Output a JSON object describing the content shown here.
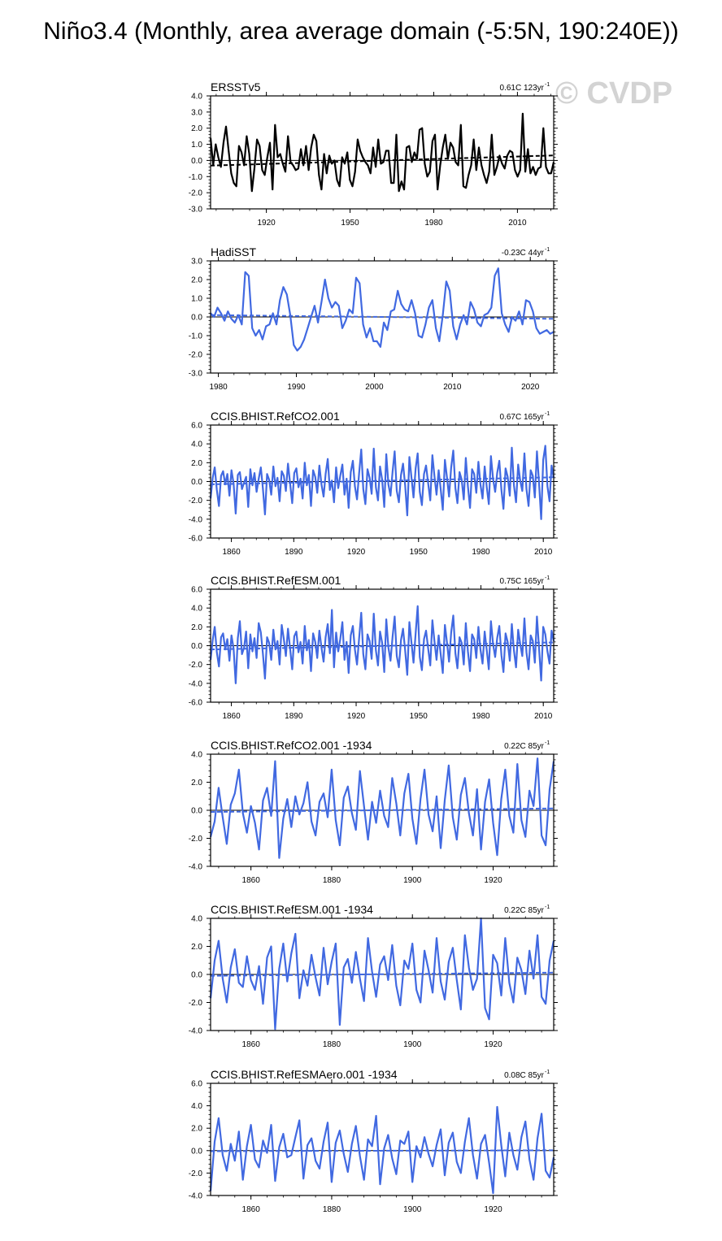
{
  "figure": {
    "title": "Niño3.4 (Monthly, area average domain (-5:5N, 190:240E))",
    "watermark": "© CVDP"
  },
  "colors": {
    "observed": "#000000",
    "model": "#4169e1"
  },
  "chart_data": [
    {
      "type": "line",
      "title": "ERSSTv5",
      "trend_label": "0.61C 123yr",
      "trend_label_sup": "-1",
      "series": [
        {
          "color": "#000000",
          "start": 1900,
          "end": 2023,
          "values": [
            1.4,
            -0.3,
            1.0,
            0.2,
            -0.4,
            1.1,
            2.1,
            0.6,
            -0.8,
            -1.4,
            -1.6,
            0.9,
            0.5,
            -0.3,
            1.5,
            0.4,
            -1.9,
            -0.5,
            1.3,
            0.9,
            -0.6,
            -0.9,
            0.2,
            1.1,
            -1.8,
            2.2,
            0.2,
            0.4,
            -0.2,
            -0.7,
            1.5,
            -0.1,
            -0.3,
            -0.6,
            -0.5,
            0.7,
            -0.3,
            0.9,
            -0.6,
            0.8,
            1.6,
            1.2,
            -0.9,
            -1.8,
            0.4,
            -0.8,
            0.3,
            -0.2,
            0.0,
            -1.2,
            -1.6,
            0.2,
            -0.2,
            0.5,
            -1.2,
            -1.6,
            -0.7,
            1.3,
            0.6,
            0.2,
            -0.1,
            -0.3,
            -0.8,
            0.8,
            -0.4,
            1.3,
            -0.2,
            -0.1,
            0.6,
            0.6,
            -1.4,
            -1.4,
            1.6,
            -1.9,
            -1.3,
            -1.8,
            0.8,
            0.9,
            -0.1,
            0.5,
            0.1,
            1.9,
            2.0,
            -0.2,
            -1.0,
            -0.7,
            1.2,
            1.6,
            -1.8,
            -0.3,
            0.8,
            1.6,
            0.1,
            1.1,
            0.8,
            -0.1,
            -0.3,
            2.2,
            -1.6,
            -1.7,
            -0.9,
            -0.3,
            1.3,
            -0.6,
            0.8,
            -0.3,
            -0.9,
            -1.4,
            -0.7,
            1.6,
            -0.9,
            -0.4,
            0.3,
            -0.2,
            -0.5,
            0.3,
            0.6,
            0.5,
            -0.6,
            -1.0,
            -0.6,
            2.9,
            -0.7,
            0.7,
            -0.8,
            -0.4,
            -0.9,
            -0.5,
            -0.4,
            2.0,
            -0.4,
            -0.8,
            -0.8,
            -0.1
          ]
        }
      ],
      "trend": [
        -0.32,
        0.31
      ],
      "ylim": [
        -3,
        4
      ],
      "ylabels": [
        "4.0",
        "3.0",
        "2.0",
        "1.0",
        "0.0",
        "-1.0",
        "-2.0",
        "-3.0"
      ],
      "xlim": [
        1900,
        2023
      ],
      "xticks": [
        1920,
        1950,
        1980,
        2010
      ]
    },
    {
      "type": "line",
      "title": "HadiSST",
      "trend_label": "-0.23C 44yr",
      "trend_label_sup": "-1",
      "series": [
        {
          "color": "#4169e1",
          "start": 1979,
          "end": 2023,
          "values": [
            0.2,
            0.0,
            0.5,
            0.2,
            -0.2,
            0.3,
            -0.1,
            -0.3,
            0.1,
            -0.4,
            2.4,
            2.2,
            -0.6,
            -1.0,
            -0.7,
            -1.2,
            -0.5,
            -0.4,
            0.2,
            -0.4,
            0.9,
            1.6,
            1.2,
            0.1,
            -1.5,
            -1.8,
            -1.6,
            -1.2,
            -0.6,
            0.0,
            0.6,
            -0.3,
            0.8,
            2.0,
            1.0,
            0.5,
            0.8,
            0.6,
            -0.6,
            -0.2,
            0.4,
            0.2,
            2.1,
            1.8,
            -0.4,
            -1.1,
            -0.6,
            -1.3,
            -1.3,
            -1.6,
            -0.3,
            -0.7,
            0.3,
            0.4,
            1.4,
            0.7,
            0.4,
            0.3,
            0.9,
            0.2,
            -1.0,
            -1.1,
            -0.4,
            0.5,
            0.9,
            -0.6,
            -1.3,
            0.1,
            1.9,
            1.4,
            -0.5,
            -1.2,
            -0.4,
            0.1,
            -0.4,
            0.8,
            0.4,
            -0.3,
            -0.5,
            0.1,
            0.2,
            0.5,
            2.2,
            2.6,
            0.2,
            -0.4,
            -0.8,
            0.0,
            -0.2,
            0.3,
            -0.4,
            0.9,
            0.8,
            0.3,
            -0.6,
            -0.9,
            -0.8,
            -0.7,
            -0.9,
            -0.8
          ]
        }
      ],
      "trend": [
        0.1,
        -0.1
      ],
      "ylim": [
        -3,
        3
      ],
      "ylabels": [
        "3.0",
        "2.0",
        "1.0",
        "0.0",
        "-1.0",
        "-2.0",
        "-3.0"
      ],
      "xlim": [
        1979,
        2023
      ],
      "xticks": [
        1980,
        1990,
        2000,
        2010,
        2020
      ]
    },
    {
      "type": "line",
      "title": "CCIS.BHIST.RefCO2.001",
      "trend_label": "0.67C 165yr",
      "trend_label_sup": "-1",
      "series": [
        {
          "color": "#4169e1",
          "start": 1850,
          "end": 2015,
          "values": [
            -1.8,
            0.4,
            1.5,
            -0.9,
            -2.6,
            0.6,
            1.1,
            -0.3,
            0.8,
            -1.5,
            1.2,
            -0.2,
            -3.4,
            0.7,
            1.0,
            -0.8,
            -0.1,
            0.5,
            -2.7,
            1.3,
            -0.4,
            0.9,
            -1.1,
            0.3,
            1.5,
            -0.7,
            -3.5,
            0.8,
            0.2,
            -1.4,
            1.6,
            -0.5,
            0.4,
            -2.1,
            1.1,
            0.6,
            -1.0,
            1.9,
            -0.2,
            -2.3,
            0.9,
            1.4,
            -0.6,
            0.3,
            -1.8,
            2.0,
            -0.4,
            0.7,
            -2.6,
            1.2,
            0.5,
            -1.2,
            1.7,
            -0.3,
            -1.6,
            0.8,
            2.4,
            -0.9,
            0.1,
            -2.2,
            1.5,
            -0.7,
            0.6,
            1.8,
            -1.4,
            0.3,
            -2.8,
            1.0,
            2.2,
            -0.5,
            -1.9,
            0.9,
            3.4,
            -0.8,
            -2.4,
            1.3,
            0.4,
            -1.3,
            3.5,
            -0.6,
            -2.0,
            1.6,
            0.2,
            -2.7,
            2.9,
            -0.3,
            -1.5,
            1.1,
            3.2,
            -1.0,
            -2.2,
            0.7,
            1.9,
            -0.4,
            -3.6,
            2.6,
            0.5,
            -1.7,
            1.4,
            3.0,
            -1.1,
            -2.5,
            0.8,
            1.7,
            -0.2,
            -2.0,
            2.8,
            0.6,
            -1.4,
            1.2,
            -0.8,
            -3.0,
            2.3,
            0.4,
            -1.6,
            1.5,
            3.3,
            -0.7,
            -2.3,
            1.0,
            0.2,
            -1.9,
            2.5,
            -0.5,
            -2.8,
            1.3,
            0.8,
            -1.2,
            2.1,
            -0.3,
            -1.8,
            1.6,
            -0.6,
            -2.4,
            2.7,
            0.3,
            -1.1,
            0.9,
            2.2,
            -0.9,
            -2.9,
            1.4,
            0.5,
            -1.5,
            3.6,
            -0.4,
            -2.2,
            1.8,
            0.1,
            -1.0,
            3.0,
            -0.8,
            -2.6,
            1.2,
            0.6,
            -1.7,
            3.2,
            -0.2,
            -4.0,
            2.3,
            3.8,
            -0.5,
            -2.1,
            1.7,
            0.4
          ]
        }
      ],
      "trend": [
        -0.3,
        0.45
      ],
      "ylim": [
        -6,
        6
      ],
      "ylabels": [
        "6.0",
        "4.0",
        "2.0",
        "0.0",
        "-2.0",
        "-4.0",
        "-6.0"
      ],
      "xlim": [
        1850,
        2015
      ],
      "xticks": [
        1860,
        1890,
        1920,
        1950,
        1980,
        2010
      ]
    },
    {
      "type": "line",
      "title": "CCIS.BHIST.RefESM.001",
      "trend_label": "0.75C 165yr",
      "trend_label_sup": "-1",
      "series": [
        {
          "color": "#4169e1",
          "start": 1850,
          "end": 2015,
          "values": [
            -1.5,
            0.6,
            2.0,
            -0.7,
            -2.2,
            0.9,
            1.3,
            -0.4,
            0.7,
            -1.6,
            1.1,
            -0.3,
            -4.0,
            0.8,
            2.6,
            -0.9,
            -0.2,
            1.5,
            -2.4,
            1.2,
            -0.6,
            0.8,
            -1.3,
            2.4,
            1.4,
            -0.8,
            -3.5,
            0.9,
            0.3,
            -1.5,
            1.7,
            -0.4,
            0.5,
            -2.0,
            2.2,
            0.7,
            -1.1,
            1.8,
            -0.3,
            -2.5,
            1.0,
            1.5,
            -0.7,
            0.4,
            -1.9,
            2.1,
            -0.5,
            0.6,
            -2.7,
            1.3,
            0.4,
            -1.3,
            1.6,
            -0.2,
            -1.7,
            0.9,
            2.3,
            -0.8,
            3.8,
            -2.3,
            1.4,
            -0.6,
            0.7,
            2.5,
            -1.5,
            0.4,
            -2.9,
            1.1,
            2.1,
            -0.4,
            -2.0,
            0.8,
            3.5,
            -0.9,
            -2.5,
            1.2,
            0.5,
            -1.4,
            3.4,
            -0.5,
            -2.1,
            1.5,
            0.3,
            -2.8,
            2.8,
            -0.2,
            -1.6,
            1.0,
            3.1,
            -1.1,
            -2.3,
            0.6,
            1.8,
            -0.5,
            -3.1,
            2.5,
            0.4,
            -1.8,
            1.3,
            4.2,
            -1.2,
            -2.6,
            0.7,
            1.6,
            -0.3,
            -2.1,
            2.7,
            0.5,
            -1.5,
            1.1,
            -0.9,
            -2.9,
            2.2,
            0.3,
            -1.7,
            1.4,
            3.2,
            -0.8,
            -2.4,
            0.9,
            0.3,
            -2.0,
            2.4,
            -0.6,
            -2.7,
            1.2,
            0.7,
            -1.3,
            2.0,
            -0.4,
            -1.9,
            1.5,
            -0.5,
            -2.5,
            2.6,
            0.2,
            -1.2,
            0.8,
            2.1,
            -1.0,
            -2.8,
            1.3,
            0.4,
            -1.6,
            2.3,
            -0.5,
            -2.3,
            1.7,
            0.2,
            -1.1,
            2.9,
            -0.7,
            -2.5,
            1.1,
            0.5,
            -1.8,
            3.1,
            -0.3,
            -3.7,
            2.0,
            1.2,
            -0.6,
            -1.9,
            1.6,
            0.5
          ]
        }
      ],
      "trend": [
        -0.4,
        0.35
      ],
      "ylim": [
        -6,
        6
      ],
      "ylabels": [
        "6.0",
        "4.0",
        "2.0",
        "0.0",
        "-2.0",
        "-4.0",
        "-6.0"
      ],
      "xlim": [
        1850,
        2015
      ],
      "xticks": [
        1860,
        1890,
        1920,
        1950,
        1980,
        2010
      ]
    },
    {
      "type": "line",
      "title": "CCIS.BHIST.RefCO2.001 -1934",
      "trend_label": "0.22C 85yr",
      "trend_label_sup": "-1",
      "series": [
        {
          "color": "#4169e1",
          "start": 1850,
          "end": 1935,
          "values": [
            -1.9,
            -0.8,
            1.6,
            -0.5,
            -2.4,
            0.4,
            1.2,
            2.9,
            -0.2,
            -1.6,
            0.3,
            -0.9,
            -2.8,
            0.7,
            1.6,
            -0.4,
            3.5,
            -3.4,
            -0.6,
            0.8,
            -1.2,
            1.0,
            -0.3,
            0.5,
            2.0,
            -0.8,
            -1.8,
            0.6,
            1.2,
            -0.5,
            2.9,
            -0.7,
            -2.5,
            0.9,
            1.7,
            -0.2,
            -1.4,
            2.8,
            0.3,
            -2.1,
            0.6,
            -0.9,
            1.4,
            -0.4,
            -1.2,
            2.3,
            0.5,
            -1.8,
            1.2,
            2.6,
            -0.6,
            -2.4,
            0.8,
            2.9,
            -0.3,
            -1.5,
            1.0,
            -2.7,
            0.7,
            3.2,
            -0.5,
            -2.1,
            1.1,
            2.3,
            -0.2,
            -1.8,
            1.5,
            -2.8,
            0.6,
            2.2,
            -0.9,
            -3.2,
            0.8,
            2.9,
            -0.4,
            -1.6,
            3.3,
            -0.7,
            -1.9,
            1.4,
            0.3,
            3.7,
            -1.8,
            -2.5,
            1.5,
            3.5
          ]
        }
      ],
      "trend": [
        -0.12,
        0.13
      ],
      "ylim": [
        -4,
        4
      ],
      "ylabels": [
        "4.0",
        "2.0",
        "0.0",
        "-2.0",
        "-4.0"
      ],
      "xlim": [
        1850,
        1935
      ],
      "xticks": [
        1860,
        1880,
        1900,
        1920
      ]
    },
    {
      "type": "line",
      "title": "CCIS.BHIST.RefESM.001 -1934",
      "trend_label": "0.22C 85yr",
      "trend_label_sup": "-1",
      "series": [
        {
          "color": "#4169e1",
          "start": 1850,
          "end": 1935,
          "values": [
            -1.7,
            1.0,
            2.4,
            -0.3,
            -2.0,
            0.5,
            1.8,
            -0.6,
            -0.9,
            1.3,
            -0.4,
            -1.1,
            0.6,
            -2.1,
            1.2,
            2.0,
            -3.9,
            0.4,
            2.2,
            -0.5,
            1.5,
            2.9,
            -1.7,
            0.3,
            -0.8,
            1.4,
            -0.2,
            -1.5,
            1.9,
            -0.7,
            0.9,
            2.2,
            -3.6,
            0.5,
            1.1,
            -0.6,
            1.6,
            -0.3,
            -1.9,
            2.6,
            0.2,
            -1.6,
            0.7,
            1.3,
            -0.4,
            2.1,
            -0.8,
            -2.2,
            1.0,
            0.4,
            2.2,
            -1.1,
            -2.0,
            1.7,
            0.3,
            -1.3,
            2.6,
            -0.5,
            -1.8,
            0.9,
            1.9,
            -0.4,
            -2.5,
            2.8,
            0.5,
            -1.1,
            -0.3,
            4.0,
            -2.4,
            -3.2,
            1.4,
            0.8,
            -1.5,
            2.6,
            -0.6,
            -2.0,
            1.2,
            0.3,
            -1.4,
            1.7,
            -0.3,
            2.8,
            -1.6,
            -2.1,
            1.0,
            2.4
          ]
        }
      ],
      "trend": [
        -0.1,
        0.13
      ],
      "ylim": [
        -4,
        4
      ],
      "ylabels": [
        "4.0",
        "2.0",
        "0.0",
        "-2.0",
        "-4.0"
      ],
      "xlim": [
        1850,
        1935
      ],
      "xticks": [
        1860,
        1880,
        1900,
        1920
      ]
    },
    {
      "type": "line",
      "title": "CCIS.BHIST.RefESMAero.001 -1934",
      "trend_label": "0.08C 85yr",
      "trend_label_sup": "-1",
      "series": [
        {
          "color": "#4169e1",
          "start": 1850,
          "end": 1935,
          "values": [
            -3.6,
            0.8,
            2.9,
            -0.4,
            -1.8,
            0.6,
            -0.9,
            1.7,
            -2.6,
            0.4,
            2.3,
            -0.8,
            -1.5,
            0.9,
            -0.2,
            2.3,
            -2.7,
            0.3,
            1.5,
            -0.6,
            -0.4,
            1.2,
            2.7,
            -2.5,
            0.5,
            1.1,
            -0.9,
            -1.6,
            0.8,
            2.5,
            -2.8,
            0.7,
            1.8,
            -0.3,
            -1.9,
            0.6,
            2.2,
            -0.5,
            -2.6,
            1.0,
            0.4,
            3.1,
            -3.0,
            0.2,
            1.4,
            -0.7,
            -2.1,
            0.9,
            0.6,
            1.7,
            -2.8,
            0.4,
            -0.6,
            1.2,
            -0.3,
            -1.4,
            0.5,
            1.9,
            -2.2,
            0.7,
            1.6,
            -1.0,
            -2.0,
            0.8,
            2.9,
            -0.4,
            -2.5,
            0.6,
            1.4,
            -1.1,
            -3.8,
            3.9,
            0.5,
            -2.3,
            1.6,
            -0.4,
            -1.7,
            1.2,
            2.6,
            -0.8,
            -2.6,
            1.1,
            3.3,
            -1.8,
            -2.4,
            -0.6
          ]
        }
      ],
      "trend": [
        -0.05,
        0.03
      ],
      "ylim": [
        -4,
        6
      ],
      "ylabels": [
        "6.0",
        "4.0",
        "2.0",
        "0.0",
        "-2.0",
        "-4.0"
      ],
      "xlim": [
        1850,
        1935
      ],
      "xticks": [
        1860,
        1880,
        1900,
        1920
      ]
    }
  ]
}
